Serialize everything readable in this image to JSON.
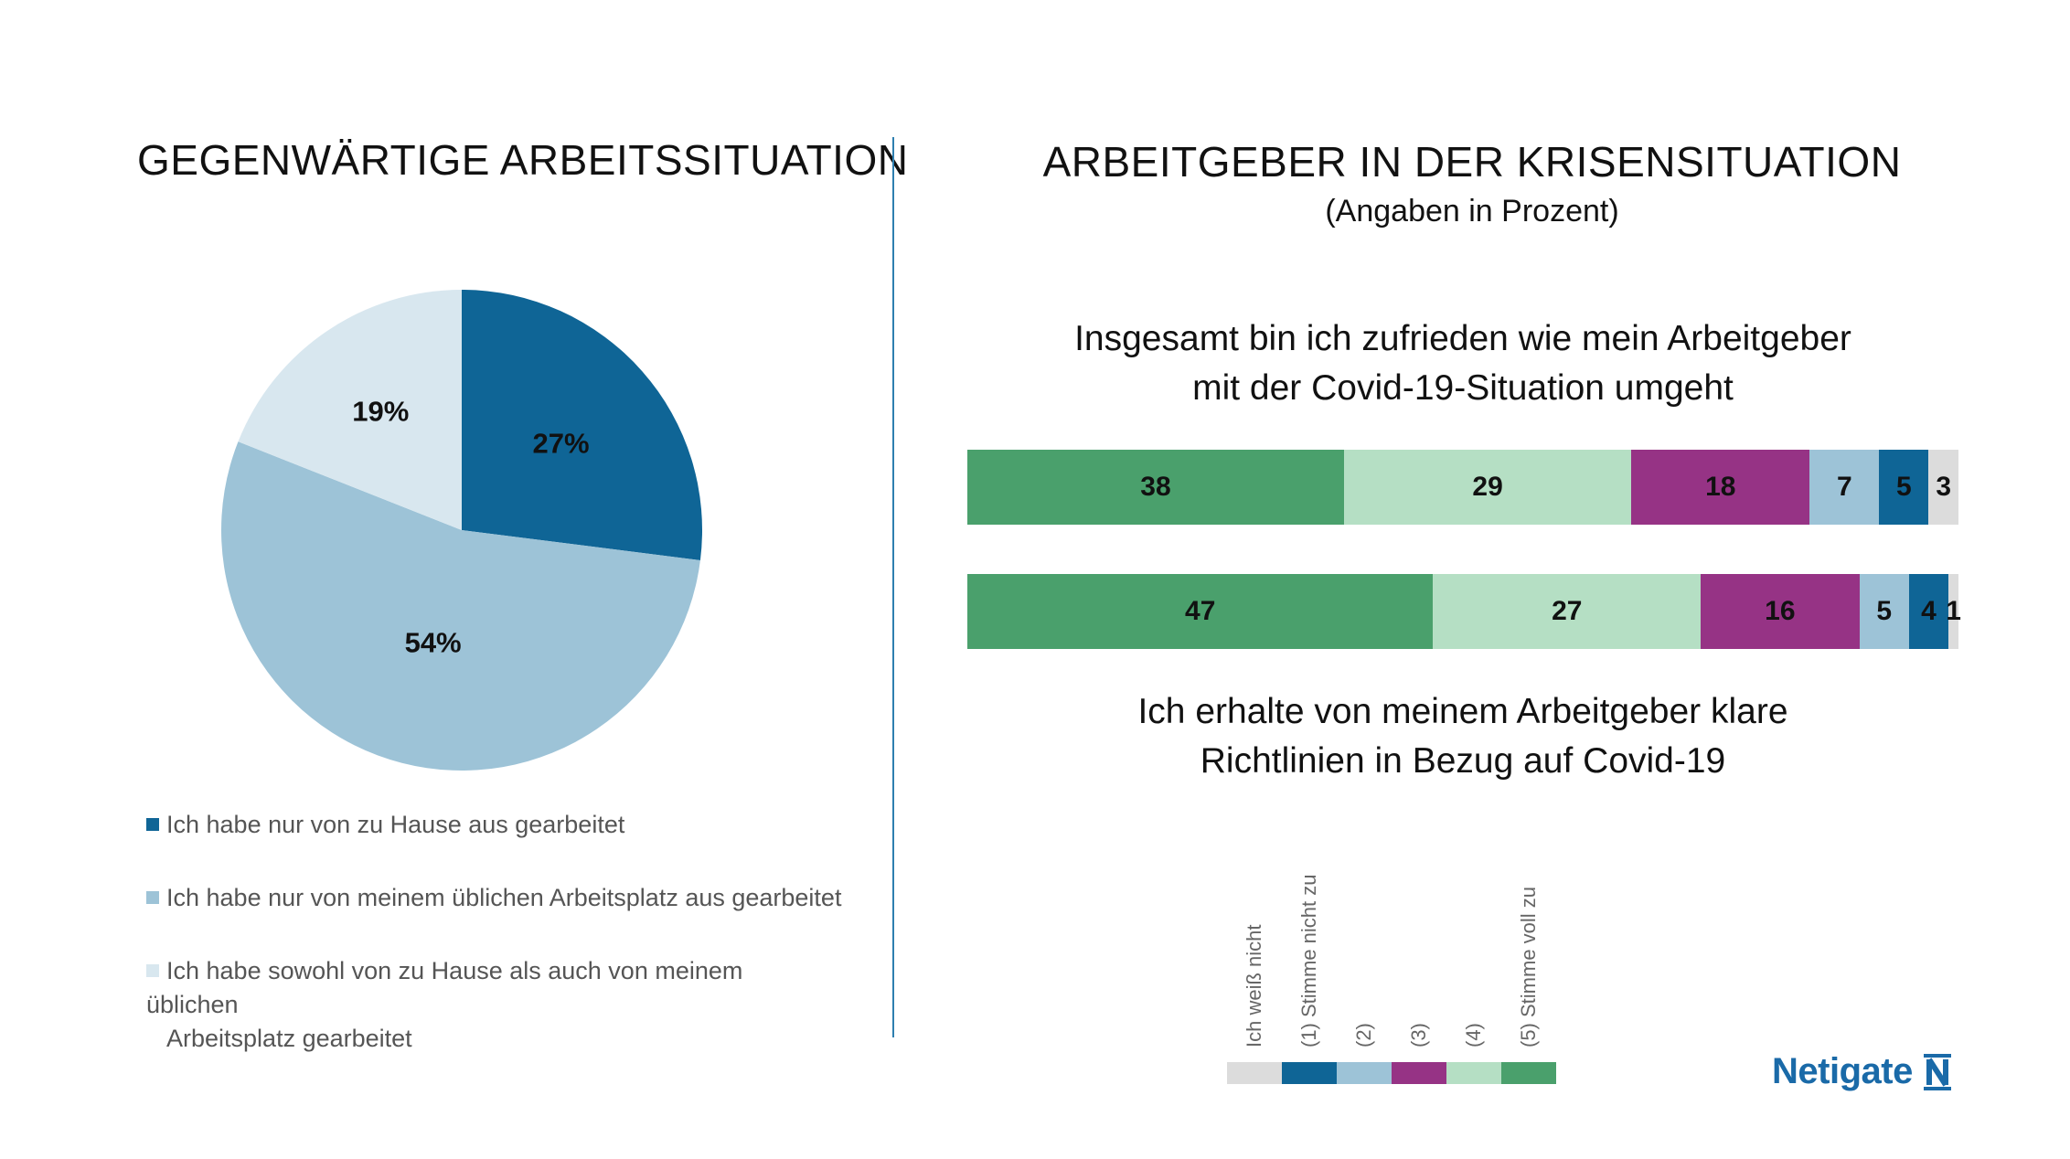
{
  "left_title": "GEGENWÄRTIGE ARBEITSSITUATION",
  "right_title": "ARBEITGEBER IN DER KRISENSITUATION",
  "right_subtitle": "(Angaben in Prozent)",
  "question1": {
    "line1": "Insgesamt bin ich zufrieden wie mein Arbeitgeber",
    "line2": "mit der Covid-19-Situation umgeht"
  },
  "question2": {
    "line1": "Ich erhalte von meinem Arbeitgeber klare",
    "line2": "Richtlinien in Bezug auf Covid-19"
  },
  "colors": {
    "dark_blue": "#0f6596",
    "mid_blue": "#9dc3d7",
    "light_blue": "#d8e7ef",
    "dark_green": "#4aa06c",
    "light_green": "#b5dfc4",
    "purple": "#963385",
    "grey": "#dcdcdc"
  },
  "chart_data": [
    {
      "type": "pie",
      "title": "GEGENWÄRTIGE ARBEITSSITUATION",
      "slices": [
        {
          "label": "Ich habe nur von zu Hause aus gearbeitet",
          "value": 27,
          "display": "27%",
          "color": "#0f6596"
        },
        {
          "label": "Ich habe nur von meinem üblichen Arbeitsplatz aus gearbeitet",
          "value": 54,
          "display": "54%",
          "color": "#9dc3d7"
        },
        {
          "label": "Ich habe sowohl von zu Hause als auch von meinem üblichen Arbeitsplatz gearbeitet",
          "value": 19,
          "display": "19%",
          "color": "#d8e7ef"
        }
      ]
    },
    {
      "type": "bar",
      "orientation": "horizontal-stacked",
      "title": "ARBEITGEBER IN DER KRISENSITUATION",
      "subtitle": "(Angaben in Prozent)",
      "categories": [
        "(5) Stimme voll zu",
        "(4)",
        "(3)",
        "(2)",
        "(1) Stimme nicht zu",
        "Ich weiß nicht"
      ],
      "series": [
        {
          "name": "Insgesamt bin ich zufrieden wie mein Arbeitgeber mit der Covid-19-Situation umgeht",
          "values": [
            38,
            29,
            18,
            7,
            5,
            3
          ]
        },
        {
          "name": "Ich erhalte von meinem Arbeitgeber klare Richtlinien in Bezug auf Covid-19",
          "values": [
            47,
            27,
            16,
            5,
            4,
            1
          ]
        }
      ],
      "segment_colors": [
        "#4aa06c",
        "#b5dfc4",
        "#963385",
        "#9dc3d7",
        "#0f6596",
        "#dcdcdc"
      ],
      "legend": [
        {
          "label": "Ich weiß nicht",
          "color": "#dcdcdc"
        },
        {
          "label": "(1) Stimme nicht zu",
          "color": "#0f6596"
        },
        {
          "label": "(2)",
          "color": "#9dc3d7"
        },
        {
          "label": "(3)",
          "color": "#963385"
        },
        {
          "label": "(4)",
          "color": "#b5dfc4"
        },
        {
          "label": "(5) Stimme voll zu",
          "color": "#4aa06c"
        }
      ]
    }
  ],
  "logo": {
    "text": "Netigate"
  }
}
